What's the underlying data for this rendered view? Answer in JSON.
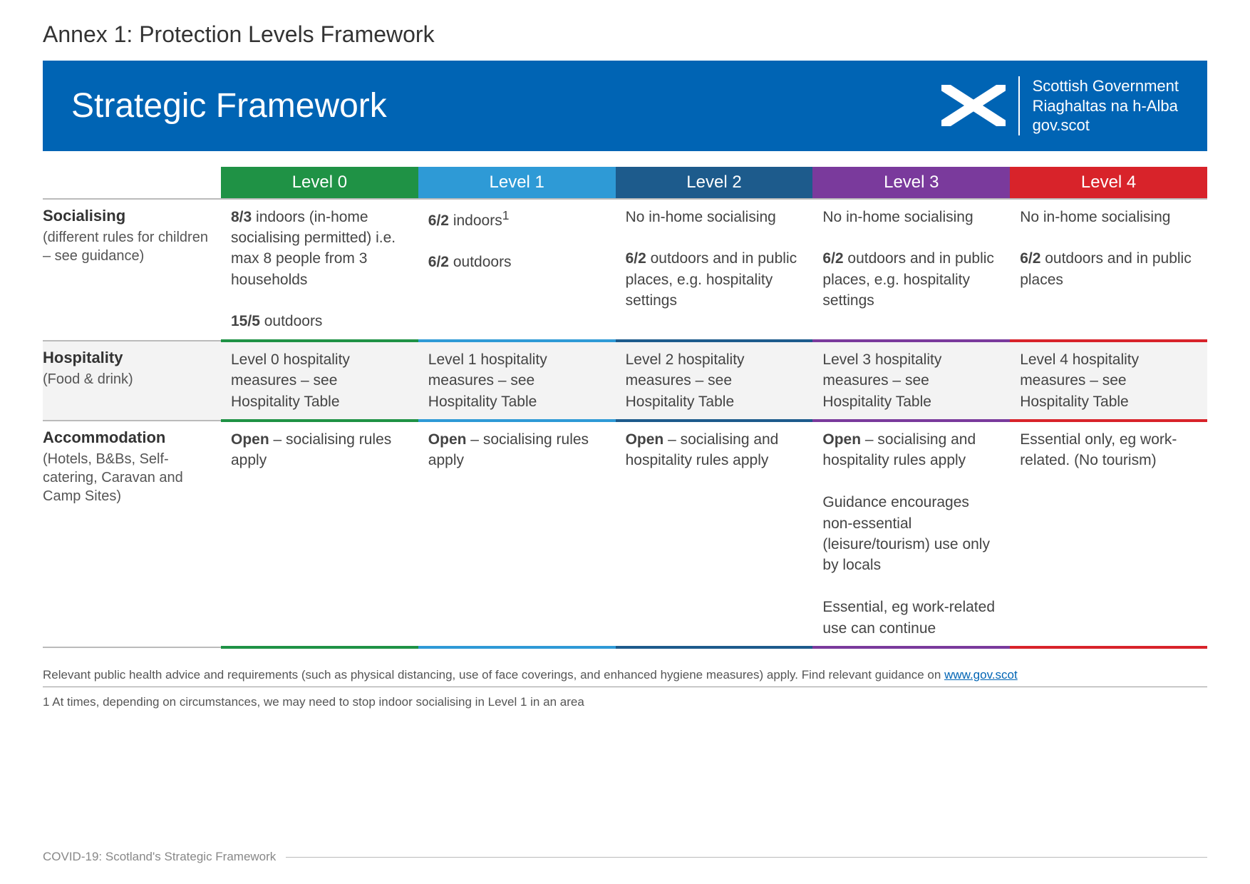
{
  "annex_title": "Annex 1: Protection Levels Framework",
  "banner": {
    "title": "Strategic Framework",
    "background_color": "#0064b4",
    "gov_line1": "Scottish Government",
    "gov_line2": "Riaghaltas na h-Alba",
    "gov_line3": "gov.scot",
    "saltire_bg": "#0064b4",
    "saltire_cross": "#ffffff"
  },
  "levels": [
    {
      "label": "Level 0",
      "color": "#1f9245"
    },
    {
      "label": "Level 1",
      "color": "#2e9ad6"
    },
    {
      "label": "Level 2",
      "color": "#1d5b8c"
    },
    {
      "label": "Level 3",
      "color": "#7a3a9c"
    },
    {
      "label": "Level 4",
      "color": "#d8232a"
    }
  ],
  "rows": {
    "socialising": {
      "title": "Socialising",
      "subtitle": "(different rules for children – see guidance)",
      "cells": [
        "<b>8/3</b> indoors (in-home socialising permitted) i.e. max 8 people from 3 households<br><br><b>15/5</b> outdoors",
        "<b>6/2</b> indoors<sup>1</sup><br><br><b>6/2</b> outdoors",
        "No in-home socialising<br><br><b>6/2</b> outdoors and in public places, e.g. hospitality settings",
        "No in-home socialising<br><br><b>6/2</b> outdoors and in public places, e.g. hospitality settings",
        "No in-home socialising<br><br><b>6/2</b> outdoors and in public places"
      ]
    },
    "hospitality": {
      "title": "Hospitality",
      "subtitle": "(Food & drink)",
      "cells": [
        "Level 0 hospitality measures – see Hospitality Table",
        "Level 1 hospitality measures – see Hospitality Table",
        "Level 2 hospitality measures – see Hospitality Table",
        "Level 3 hospitality measures – see Hospitality Table",
        "Level 4 hospitality measures – see Hospitality Table"
      ]
    },
    "accommodation": {
      "title": "Accommodation",
      "subtitle": "(Hotels, B&Bs, Self-catering, Caravan and Camp Sites)",
      "cells": [
        "<b>Open</b> – socialising rules apply",
        "<b>Open</b> – socialising rules apply",
        "<b>Open</b> – socialising and hospitality rules apply",
        "<b>Open</b> – socialising and hospitality rules apply<br><br>Guidance encourages non-essential (leisure/tourism) use only by locals<br><br>Essential, eg work-related use can continue",
        "Essential only, eg work-related. (No tourism)"
      ]
    }
  },
  "footer": {
    "advice_pre": "Relevant public health advice and requirements (such as physical distancing, use of face coverings, and enhanced hygiene measures) apply. Find relevant guidance on ",
    "advice_link": "www.gov.scot",
    "footnote": "1   At times, depending on circumstances, we may need to stop indoor socialising in Level 1 in an area",
    "doc_title": "COVID-19: Scotland's Strategic Framework"
  },
  "style": {
    "annex_title_fontsize": 32,
    "banner_title_fontsize": 48,
    "level_header_fontsize": 24,
    "rowhead_fontsize": 22,
    "cell_fontsize": 21,
    "footer_fontsize": 17,
    "text_color": "#444444",
    "row_border_color": "#bbbbbb",
    "alt_row_bg": "#f3f3f3",
    "page_bg": "#ffffff"
  }
}
